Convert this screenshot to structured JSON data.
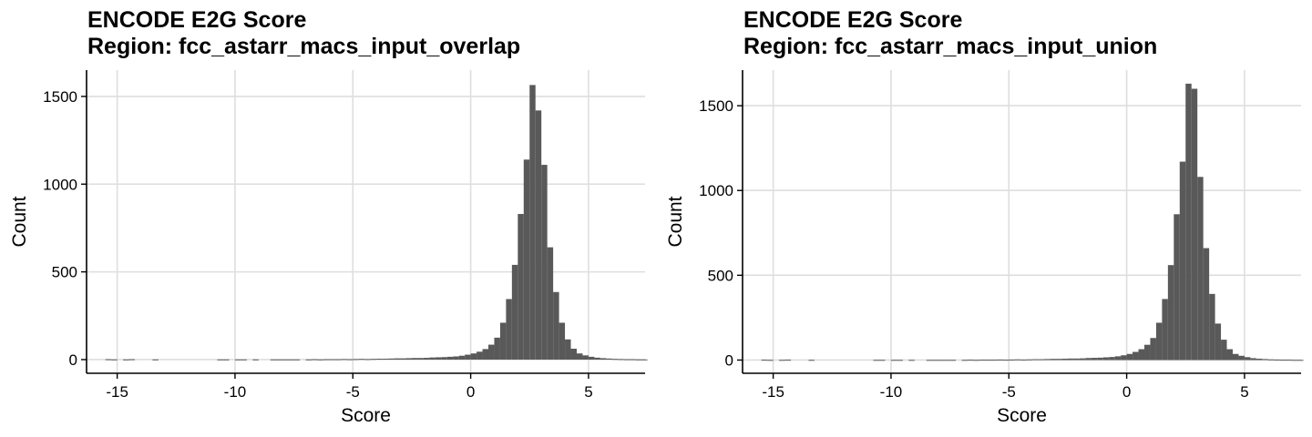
{
  "chart_data": [
    {
      "type": "bar",
      "title": "ENCODE E2G Score",
      "subtitle": "Region: fcc_astarr_macs_input_overlap",
      "xlabel": "Score",
      "ylabel": "Count",
      "xlim": [
        -16.3,
        7.4
      ],
      "ylim": [
        -78,
        1650
      ],
      "xticks": [
        -15,
        -10,
        -5,
        0,
        5
      ],
      "yticks": [
        0,
        500,
        1000,
        1500
      ],
      "grid": true,
      "bin_width": 0.25,
      "bin_start": -15.5,
      "values": [
        2,
        1,
        0,
        1,
        2,
        0,
        0,
        0,
        1,
        0,
        0,
        0,
        0,
        0,
        0,
        0,
        0,
        0,
        0,
        1,
        1,
        0,
        1,
        1,
        0,
        1,
        0,
        0,
        1,
        1,
        1,
        1,
        1,
        0,
        1,
        2,
        1,
        2,
        2,
        2,
        3,
        2,
        3,
        4,
        3,
        4,
        5,
        5,
        6,
        7,
        7,
        8,
        9,
        9,
        10,
        12,
        13,
        14,
        16,
        18,
        22,
        28,
        35,
        45,
        60,
        85,
        125,
        210,
        345,
        540,
        830,
        1140,
        1565,
        1420,
        1110,
        640,
        385,
        210,
        115,
        62,
        35,
        24,
        16,
        11,
        8,
        6,
        4,
        3,
        2,
        2,
        1,
        1
      ]
    },
    {
      "type": "bar",
      "title": "ENCODE E2G Score",
      "subtitle": "Region: fcc_astarr_macs_input_union",
      "xlabel": "Score",
      "ylabel": "Count",
      "xlim": [
        -16.3,
        7.4
      ],
      "ylim": [
        -78,
        1710
      ],
      "xticks": [
        -15,
        -10,
        -5,
        0,
        5
      ],
      "yticks": [
        0,
        500,
        1000,
        1500
      ],
      "grid": true,
      "bin_width": 0.25,
      "bin_start": -15.5,
      "values": [
        2,
        1,
        0,
        1,
        2,
        0,
        0,
        0,
        1,
        0,
        0,
        0,
        0,
        0,
        0,
        0,
        0,
        0,
        0,
        1,
        1,
        0,
        1,
        1,
        0,
        1,
        0,
        0,
        1,
        1,
        1,
        1,
        1,
        0,
        1,
        2,
        1,
        2,
        2,
        2,
        3,
        2,
        3,
        4,
        3,
        4,
        5,
        5,
        6,
        7,
        7,
        8,
        9,
        9,
        10,
        12,
        13,
        14,
        16,
        18,
        22,
        28,
        36,
        48,
        64,
        90,
        130,
        220,
        360,
        560,
        860,
        1170,
        1630,
        1600,
        1080,
        660,
        390,
        215,
        120,
        64,
        36,
        25,
        17,
        11,
        8,
        6,
        4,
        3,
        2,
        2,
        1,
        1
      ]
    }
  ]
}
